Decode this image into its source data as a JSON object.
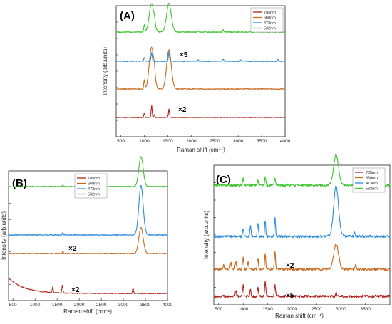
{
  "chart_data": [
    {
      "type": "line",
      "panel_label": "(A)",
      "xlabel": "Raman shift (cm⁻¹)",
      "ylabel": "Intensity (arb.units)",
      "xlim": [
        400,
        4000
      ],
      "xticks": [
        "500",
        "1000",
        "1500",
        "2000",
        "2500",
        "3000",
        "3500",
        "4000"
      ],
      "legend": [
        "785nm",
        "660nm",
        "473nm",
        "532nm"
      ],
      "legend_position": "top-right",
      "colors": {
        "785nm": "#b0241c",
        "660nm": "#c8681e",
        "473nm": "#2b8de0",
        "532nm": "#3dc52e"
      },
      "series": [
        {
          "name": "785nm",
          "baseline": 0.0,
          "multiplier": "×2",
          "peaks": [
            {
              "x": 1000,
              "h": 0.05
            },
            {
              "x": 1155,
              "h": 0.13
            },
            {
              "x": 1215,
              "h": 0.03
            },
            {
              "x": 1525,
              "h": 0.09
            }
          ]
        },
        {
          "name": "660nm",
          "baseline": 0.25,
          "multiplier": "",
          "peaks": [
            {
              "x": 1000,
              "h": 0.07
            },
            {
              "x": 1155,
              "h": 0.32
            },
            {
              "x": 1215,
              "h": 0.05
            },
            {
              "x": 1525,
              "h": 0.3
            }
          ]
        },
        {
          "name": "473nm",
          "baseline": 0.53,
          "multiplier": "×5",
          "peaks": [
            {
              "x": 1000,
              "h": 0.03
            },
            {
              "x": 1155,
              "h": 0.07
            },
            {
              "x": 1525,
              "h": 0.07
            },
            {
              "x": 2150,
              "h": 0.01
            },
            {
              "x": 2680,
              "h": 0.015
            },
            {
              "x": 3050,
              "h": 0.01
            },
            {
              "x": 3850,
              "h": 0.015
            }
          ]
        },
        {
          "name": "532nm",
          "baseline": 0.78,
          "multiplier": "",
          "peaks": [
            {
              "x": 1000,
              "h": 0.06
            },
            {
              "x": 1155,
              "h": 0.23
            },
            {
              "x": 1215,
              "h": 0.03
            },
            {
              "x": 1525,
              "h": 0.23
            },
            {
              "x": 2150,
              "h": 0.01
            },
            {
              "x": 2300,
              "h": 0.01
            },
            {
              "x": 2680,
              "h": 0.02
            }
          ]
        }
      ]
    },
    {
      "type": "line",
      "panel_label": "(B)",
      "xlabel": "Raman shift (cm⁻¹)",
      "ylabel": "Intensity (arb.units)",
      "xlim": [
        400,
        4000
      ],
      "xticks": [
        "500",
        "1000",
        "1500",
        "2000",
        "2500",
        "3000",
        "3500",
        "4000"
      ],
      "legend": [
        "785nm",
        "660nm",
        "473nm",
        "532nm"
      ],
      "legend_position": "top-left",
      "colors": {
        "785nm": "#b0241c",
        "660nm": "#c8681e",
        "473nm": "#2b8de0",
        "532nm": "#3dc52e"
      },
      "series": [
        {
          "name": "785nm",
          "baseline": 0.0,
          "multiplier": "×2",
          "peaks": [
            {
              "x": 1400,
              "h": 0.04
            },
            {
              "x": 1620,
              "h": 0.06
            },
            {
              "x": 3220,
              "h": 0.04
            }
          ]
        },
        {
          "name": "660nm",
          "baseline": 0.24,
          "multiplier": "×2",
          "peaks": [
            {
              "x": 1630,
              "h": 0.015
            },
            {
              "x": 3400,
              "h": 0.2
            }
          ]
        },
        {
          "name": "473nm",
          "baseline": 0.45,
          "multiplier": "",
          "peaks": [
            {
              "x": 1630,
              "h": 0.02
            },
            {
              "x": 3400,
              "h": 0.38
            }
          ]
        },
        {
          "name": "532nm",
          "baseline": 0.73,
          "multiplier": "",
          "peaks": [
            {
              "x": 1630,
              "h": 0.01
            },
            {
              "x": 3400,
              "h": 0.23
            }
          ]
        }
      ]
    },
    {
      "type": "line",
      "panel_label": "(C)",
      "xlabel": "Raman shift (cm⁻¹)",
      "ylabel": "Intensity (arb.units)",
      "xlim": [
        400,
        4000
      ],
      "xticks": [
        "500",
        "1000",
        "1500",
        "2000",
        "2500",
        "3000",
        "3500"
      ],
      "legend": [
        "785nm",
        "660nm",
        "473nm",
        "532nm"
      ],
      "legend_position": "top-right",
      "colors": {
        "785nm": "#b0241c",
        "660nm": "#c8681e",
        "473nm": "#2b8de0",
        "532nm": "#3dc52e"
      },
      "series": [
        {
          "name": "785nm",
          "baseline": 0.0,
          "multiplier": "×5",
          "peaks": [
            {
              "x": 850,
              "h": 0.04
            },
            {
              "x": 1000,
              "h": 0.09
            },
            {
              "x": 1150,
              "h": 0.05
            },
            {
              "x": 1300,
              "h": 0.06
            },
            {
              "x": 1450,
              "h": 0.11
            },
            {
              "x": 1650,
              "h": 0.08
            },
            {
              "x": 2900,
              "h": 0.03
            }
          ]
        },
        {
          "name": "660nm",
          "baseline": 0.22,
          "multiplier": "×2",
          "peaks": [
            {
              "x": 600,
              "h": 0.03
            },
            {
              "x": 750,
              "h": 0.05
            },
            {
              "x": 850,
              "h": 0.06
            },
            {
              "x": 1000,
              "h": 0.09
            },
            {
              "x": 1100,
              "h": 0.06
            },
            {
              "x": 1300,
              "h": 0.08
            },
            {
              "x": 1450,
              "h": 0.11
            },
            {
              "x": 1650,
              "h": 0.13
            },
            {
              "x": 2900,
              "h": 0.18
            },
            {
              "x": 3300,
              "h": 0.03
            }
          ]
        },
        {
          "name": "473nm",
          "baseline": 0.5,
          "multiplier": "",
          "peaks": [
            {
              "x": 1000,
              "h": 0.06
            },
            {
              "x": 1150,
              "h": 0.08
            },
            {
              "x": 1300,
              "h": 0.1
            },
            {
              "x": 1450,
              "h": 0.11
            },
            {
              "x": 1650,
              "h": 0.14
            },
            {
              "x": 2900,
              "h": 0.36
            },
            {
              "x": 3280,
              "h": 0.03
            }
          ]
        },
        {
          "name": "532nm",
          "baseline": 0.72,
          "multiplier": "",
          "peaks": [
            {
              "x": 1000,
              "h": 0.05
            },
            {
              "x": 1300,
              "h": 0.04
            },
            {
              "x": 1450,
              "h": 0.06
            },
            {
              "x": 1650,
              "h": 0.05
            },
            {
              "x": 2900,
              "h": 0.22
            }
          ]
        }
      ]
    }
  ]
}
